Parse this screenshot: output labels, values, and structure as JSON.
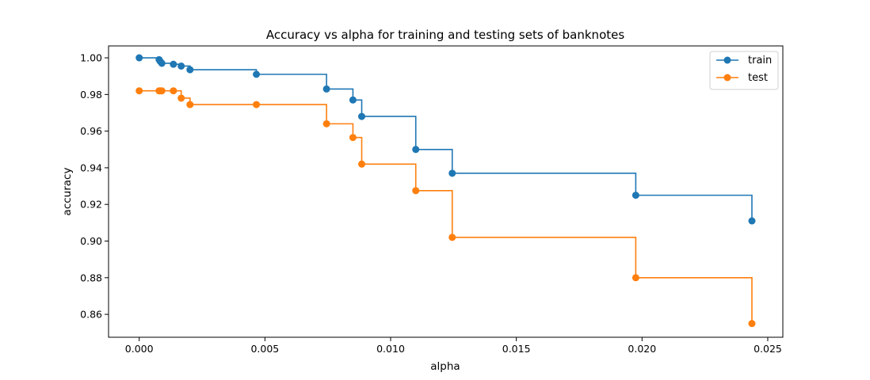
{
  "chart_data": {
    "type": "line",
    "title": "Accuracy vs alpha for training and testing sets of banknotes",
    "xlabel": "alpha",
    "ylabel": "accuracy",
    "xlim": [
      -0.00122,
      0.0256
    ],
    "ylim": [
      0.8475,
      1.0065
    ],
    "x_ticks": [
      0.0,
      0.005,
      0.01,
      0.015,
      0.02,
      0.025
    ],
    "x_tick_labels": [
      "0.000",
      "0.005",
      "0.010",
      "0.015",
      "0.020",
      "0.025"
    ],
    "y_ticks": [
      0.86,
      0.88,
      0.9,
      0.92,
      0.94,
      0.96,
      0.98,
      1.0
    ],
    "y_tick_labels": [
      "0.86",
      "0.88",
      "0.90",
      "0.92",
      "0.94",
      "0.96",
      "0.98",
      "1.00"
    ],
    "step": "post",
    "marker": "circle",
    "legend": "top-right",
    "grid": false,
    "x": [
      0.0,
      0.00079,
      0.00084,
      0.0009,
      0.00136,
      0.00167,
      0.00202,
      0.00466,
      0.00745,
      0.0085,
      0.00885,
      0.011,
      0.01245,
      0.01975,
      0.02437
    ],
    "series": [
      {
        "name": "train",
        "color": "#1f77b4",
        "values": [
          1.0,
          0.999,
          0.998,
          0.997,
          0.9965,
          0.9955,
          0.9935,
          0.991,
          0.983,
          0.977,
          0.968,
          0.95,
          0.937,
          0.925,
          0.911
        ]
      },
      {
        "name": "test",
        "color": "#ff7f0e",
        "values": [
          0.982,
          0.982,
          0.982,
          0.982,
          0.982,
          0.978,
          0.9745,
          0.9745,
          0.964,
          0.9565,
          0.942,
          0.9275,
          0.902,
          0.88,
          0.855
        ]
      }
    ]
  }
}
